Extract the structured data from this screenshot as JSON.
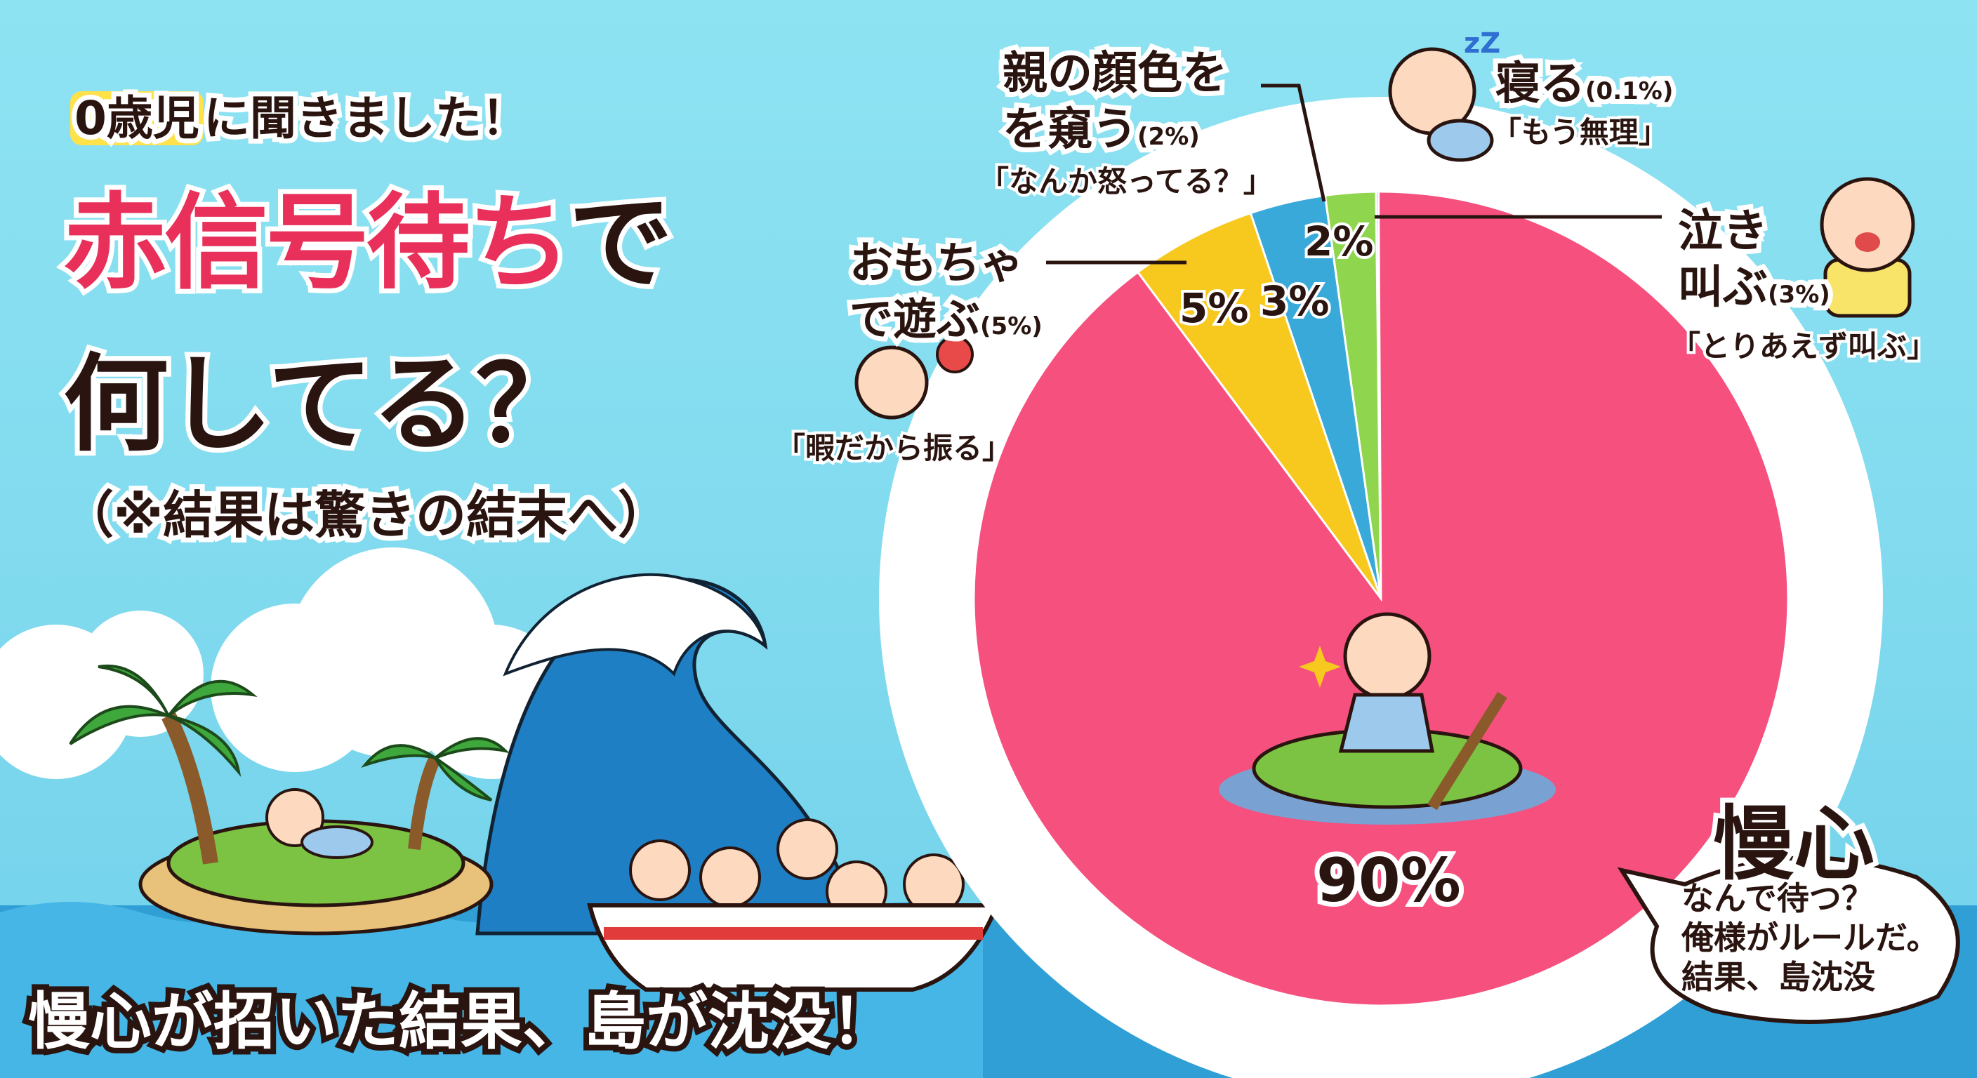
{
  "title": {
    "highlight": "0歳児",
    "line1_rest": "に聞きました！",
    "line2_red": "赤信号待ち",
    "line2_rest": "で",
    "line3": "何してる？",
    "note": "（※結果は驚きの結末へ）"
  },
  "bottom_caption": "慢心が招いた結果、島が沈没！",
  "labels": {
    "peek": {
      "line1": "親の顔色を",
      "line2": "を窺う",
      "pct": "(2%)",
      "quote": "「なんか怒ってる？」"
    },
    "sleep": {
      "line1": "寝る",
      "pct": "(0.1%)",
      "quote": "「もう無理」"
    },
    "cry": {
      "line1": "泣き",
      "line2": "叫ぶ",
      "pct": "(3%)",
      "quote": "「とりあえず叫ぶ」"
    },
    "toy": {
      "line1": "おもちゃ",
      "line2": "で遊ぶ",
      "pct": "(5%)",
      "quote": "「暇だから振る」"
    }
  },
  "bubble": {
    "title": "慢心",
    "lines": [
      "なんで待つ？",
      "俺様がルールだ。",
      "結果、島沈没"
    ]
  },
  "colors": {
    "pink": "#f5507e",
    "yellow": "#f7c81e",
    "blue": "#39a9d9",
    "green": "#8fd64e",
    "purple": "#b48ae8",
    "title_red": "#e8305a",
    "highlight": "#ffe14a",
    "sky": "#8ee3f2"
  },
  "chart_data": {
    "type": "pie",
    "start": "top",
    "direction": "counterclockwise",
    "slices": [
      {
        "label": "寝る",
        "value": 0.1,
        "color": "#b48ae8",
        "data_label": ""
      },
      {
        "label": "親の顔色を窺う",
        "value": 2,
        "color": "#8fd64e",
        "data_label": "2%"
      },
      {
        "label": "泣き叫ぶ",
        "value": 3,
        "color": "#39a9d9",
        "data_label": "3%"
      },
      {
        "label": "おもちゃで遊ぶ",
        "value": 5,
        "color": "#f7c81e",
        "data_label": "5%"
      },
      {
        "label": "慢心",
        "value": 90,
        "color": "#f5507e",
        "data_label": "90%"
      }
    ]
  }
}
